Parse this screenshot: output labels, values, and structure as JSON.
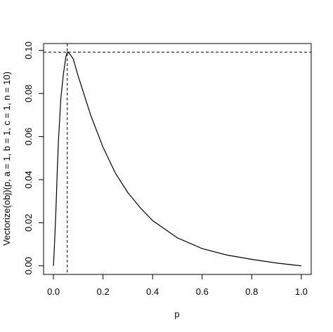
{
  "chart_data": {
    "type": "line",
    "x_label": "p",
    "y_label": "Vectorize(obj)(p, a = 1, b = 1, c = 1, n = 10)",
    "x": [
      0,
      0.005,
      0.01,
      0.015,
      0.02,
      0.03,
      0.04,
      0.05,
      0.056,
      0.065,
      0.08,
      0.1,
      0.125,
      0.15,
      0.2,
      0.25,
      0.3,
      0.35,
      0.4,
      0.5,
      0.6,
      0.7,
      0.8,
      0.9,
      1.0
    ],
    "series": [
      {
        "name": "obj",
        "color": "#000000",
        "values": [
          0,
          0.012,
          0.026,
          0.043,
          0.058,
          0.078,
          0.089,
          0.097,
          0.0992,
          0.0985,
          0.096,
          0.088,
          0.079,
          0.07,
          0.055,
          0.043,
          0.034,
          0.027,
          0.021,
          0.013,
          0.008,
          0.005,
          0.003,
          0.0013,
          0
        ]
      }
    ],
    "hline": 0.0992,
    "vline": 0.0556,
    "xlim": [
      -0.04,
      1.04
    ],
    "ylim": [
      -0.004,
      0.1032
    ],
    "xticks": [
      {
        "value": 0,
        "label": "0.0"
      },
      {
        "value": 0.2,
        "label": "0.2"
      },
      {
        "value": 0.4,
        "label": "0.4"
      },
      {
        "value": 0.6,
        "label": "0.6"
      },
      {
        "value": 0.8,
        "label": "0.8"
      },
      {
        "value": 1,
        "label": "1.0"
      }
    ],
    "yticks": [
      {
        "value": 0,
        "label": "0.00"
      },
      {
        "value": 0.02,
        "label": "0.02"
      },
      {
        "value": 0.04,
        "label": "0.04"
      },
      {
        "value": 0.06,
        "label": "0.06"
      },
      {
        "value": 0.08,
        "label": "0.08"
      },
      {
        "value": 0.1,
        "label": "0.10"
      }
    ]
  }
}
